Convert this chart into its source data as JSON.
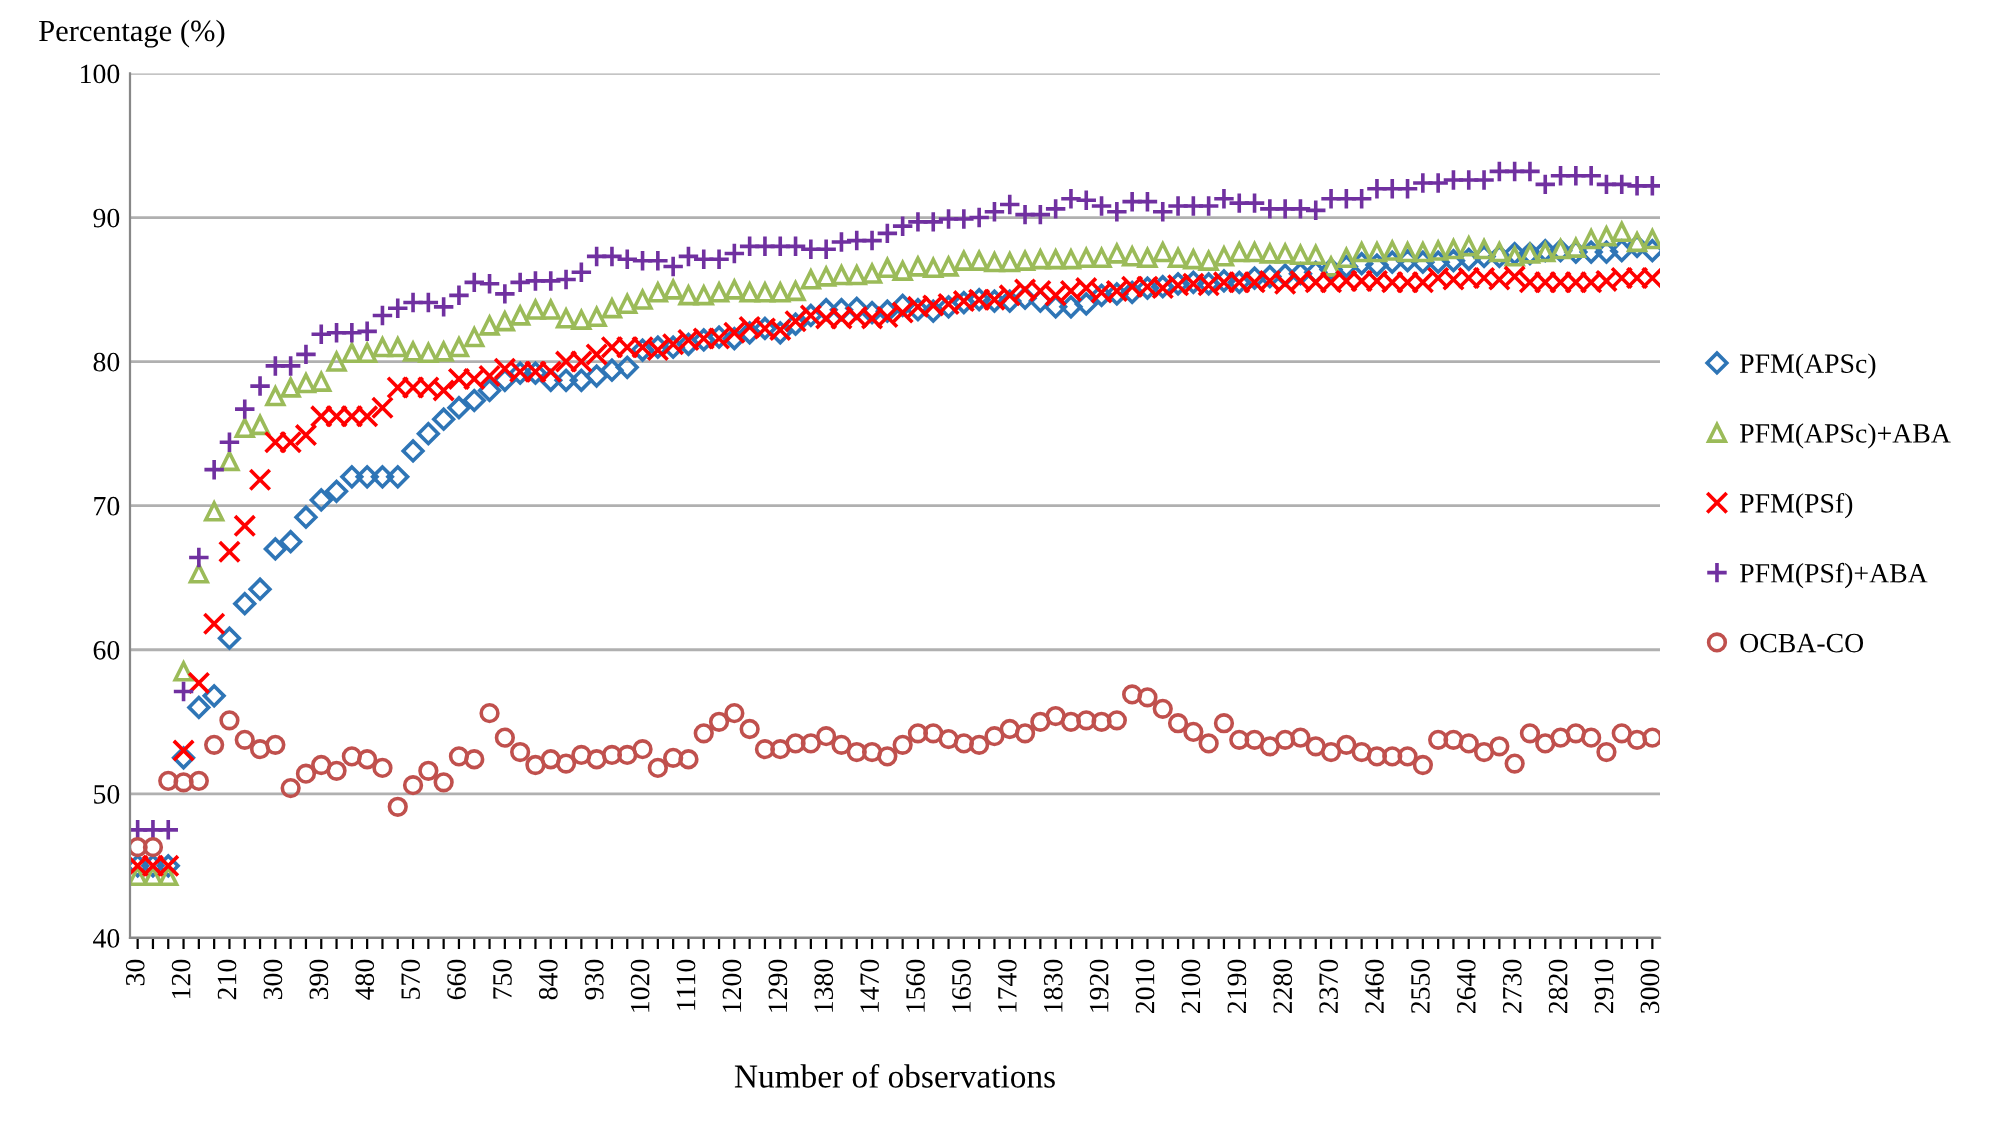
{
  "chart_data": {
    "type": "scatter",
    "ylabel": "Percentage (%)",
    "xlabel": "Number of observations",
    "categories": [
      "30",
      null,
      null,
      "120",
      null,
      null,
      "210",
      null,
      null,
      "300",
      null,
      null,
      "390",
      null,
      null,
      "480",
      null,
      null,
      "570",
      null,
      null,
      "660",
      null,
      null,
      "750",
      null,
      null,
      "840",
      null,
      null,
      "930",
      null,
      null,
      "1020",
      null,
      null,
      "1110",
      null,
      null,
      "1200",
      null,
      null,
      "1290",
      null,
      null,
      "1380",
      null,
      null,
      "1470",
      null,
      null,
      "1560",
      null,
      null,
      "1650",
      null,
      null,
      "1740",
      null,
      null,
      "1830",
      null,
      null,
      "1920",
      null,
      null,
      "2010",
      null,
      null,
      "2100",
      null,
      null,
      "2190",
      null,
      null,
      "2280",
      null,
      null,
      "2370",
      null,
      null,
      "2460",
      null,
      null,
      "2550",
      null,
      null,
      "2640",
      null,
      null,
      "2730",
      null,
      null,
      "2820",
      null,
      null,
      "2910",
      null,
      null,
      "3000"
    ],
    "ylim": [
      40,
      100
    ],
    "yticks": [
      40,
      50,
      60,
      70,
      80,
      90,
      100
    ],
    "grid": "y",
    "legend": "right",
    "series": [
      {
        "name": "PFM(APSc)",
        "color": "#2e75b6",
        "marker": "diamond",
        "values": [
          45,
          45,
          45,
          52.5,
          56,
          56.8,
          60.8,
          63.2,
          64.2,
          67,
          67.5,
          69.2,
          70.4,
          71,
          72,
          72,
          72,
          72,
          73.8,
          75,
          76,
          76.8,
          77.3,
          78,
          78.7,
          79.2,
          79.2,
          78.7,
          78.7,
          78.7,
          79,
          79.4,
          79.6,
          80.8,
          81,
          81,
          81.2,
          81.5,
          81.7,
          81.6,
          82,
          82.3,
          82,
          82.6,
          83.2,
          83.6,
          83.6,
          83.7,
          83.4,
          83.5,
          83.9,
          83.6,
          83.5,
          83.8,
          84.1,
          84.3,
          84.2,
          84.2,
          84.4,
          84.2,
          83.8,
          83.8,
          84,
          84.6,
          84.7,
          84.8,
          85.1,
          85.2,
          85.4,
          85.5,
          85.4,
          85.6,
          85.5,
          85.8,
          85.9,
          86,
          86.1,
          86.2,
          86.4,
          86.6,
          86.8,
          86.7,
          86.9,
          87,
          86.9,
          86.9,
          87,
          87.1,
          87.3,
          87.3,
          87.5,
          87.5,
          87.7,
          87.7,
          87.6,
          87.6,
          87.6,
          87.7,
          88,
          87.7
        ]
      },
      {
        "name": "PFM(APSc)+ABA",
        "color": "#9bbb59",
        "marker": "triangle",
        "values": [
          44.3,
          44.3,
          44.3,
          58.5,
          65.3,
          69.6,
          73.1,
          75.4,
          75.6,
          77.6,
          78.2,
          78.5,
          78.6,
          80,
          80.6,
          80.6,
          81,
          81,
          80.7,
          80.6,
          80.7,
          81,
          81.7,
          82.5,
          82.8,
          83.2,
          83.6,
          83.6,
          83,
          82.9,
          83.1,
          83.7,
          84,
          84.3,
          84.8,
          85,
          84.6,
          84.6,
          84.8,
          85,
          84.8,
          84.8,
          84.8,
          84.9,
          85.7,
          85.9,
          86,
          86,
          86.1,
          86.5,
          86.3,
          86.6,
          86.5,
          86.6,
          87,
          87,
          86.9,
          86.9,
          87,
          87.1,
          87.1,
          87.1,
          87.2,
          87.2,
          87.5,
          87.3,
          87.2,
          87.6,
          87.2,
          87.1,
          87,
          87.3,
          87.6,
          87.6,
          87.5,
          87.5,
          87.4,
          87.4,
          86.6,
          87.2,
          87.6,
          87.6,
          87.7,
          87.6,
          87.6,
          87.7,
          87.8,
          88,
          87.8,
          87.6,
          87.3,
          87.5,
          87.6,
          87.8,
          87.9,
          88.5,
          88.7,
          89,
          88.3,
          88.5
        ]
      },
      {
        "name": "PFM(PSf)",
        "color": "#ff0000",
        "marker": "cross",
        "values": [
          45,
          45,
          45,
          53,
          57.7,
          61.8,
          66.8,
          68.6,
          71.8,
          74.4,
          74.4,
          74.9,
          76.2,
          76.2,
          76.2,
          76.2,
          76.8,
          78.2,
          78.2,
          78.2,
          78,
          78.8,
          78.8,
          79,
          79.5,
          79.3,
          79.3,
          79.3,
          80,
          80,
          80.5,
          81,
          81,
          81,
          80.8,
          81.2,
          81.5,
          81.6,
          81.6,
          82,
          82.4,
          82.3,
          82.2,
          82.8,
          83.2,
          83,
          83,
          83.1,
          83,
          83.1,
          83.4,
          83.8,
          83.9,
          84,
          84.2,
          84.3,
          84.3,
          84.6,
          85,
          84.9,
          84.6,
          84.9,
          85.1,
          84.8,
          84.9,
          85.2,
          85.2,
          85.1,
          85.3,
          85.4,
          85.3,
          85.5,
          85.5,
          85.5,
          85.6,
          85.4,
          85.6,
          85.5,
          85.5,
          85.6,
          85.6,
          85.6,
          85.5,
          85.5,
          85.5,
          85.8,
          85.7,
          85.8,
          85.8,
          85.7,
          85.9,
          85.5,
          85.5,
          85.5,
          85.5,
          85.5,
          85.6,
          85.8,
          85.8,
          85.8
        ]
      },
      {
        "name": "PFM(PSf)+ABA",
        "color": "#7030a0",
        "marker": "plus",
        "values": [
          47.5,
          47.5,
          47.5,
          57.1,
          66.4,
          72.5,
          74.4,
          76.7,
          78.3,
          79.7,
          79.7,
          80.5,
          81.9,
          82,
          82,
          82.1,
          83.2,
          83.7,
          84.1,
          84.1,
          83.8,
          84.6,
          85.5,
          85.4,
          84.7,
          85.5,
          85.6,
          85.6,
          85.7,
          86.2,
          87.3,
          87.3,
          87.1,
          87,
          87,
          86.6,
          87.3,
          87.1,
          87.1,
          87.5,
          88,
          88,
          88,
          88,
          87.8,
          87.8,
          88.3,
          88.4,
          88.4,
          88.9,
          89.4,
          89.7,
          89.7,
          89.9,
          89.9,
          90,
          90.4,
          90.9,
          90.2,
          90.2,
          90.6,
          91.3,
          91.2,
          90.8,
          90.4,
          91.1,
          91.1,
          90.4,
          90.8,
          90.8,
          90.8,
          91.3,
          91,
          91,
          90.6,
          90.6,
          90.6,
          90.5,
          91.3,
          91.3,
          91.3,
          92,
          92,
          92,
          92.4,
          92.4,
          92.6,
          92.6,
          92.6,
          93.2,
          93.2,
          93.2,
          92.3,
          92.9,
          92.9,
          92.9,
          92.3,
          92.3,
          92.2,
          92.2
        ]
      },
      {
        "name": "OCBA-CO",
        "color": "#c0504d",
        "marker": "circle",
        "values": [
          46.3,
          46.3,
          50.9,
          50.8,
          50.9,
          53.4,
          55.1,
          53.75,
          53.1,
          53.4,
          50.4,
          51.4,
          52,
          51.6,
          52.6,
          52.4,
          51.8,
          49.1,
          50.6,
          51.6,
          50.8,
          52.6,
          52.4,
          55.6,
          53.9,
          52.9,
          52,
          52.4,
          52.1,
          52.7,
          52.4,
          52.7,
          52.7,
          53.1,
          51.8,
          52.5,
          52.4,
          54.2,
          55,
          55.6,
          54.5,
          53.1,
          53.1,
          53.5,
          53.5,
          54,
          53.4,
          52.9,
          52.9,
          52.6,
          53.4,
          54.2,
          54.2,
          53.8,
          53.5,
          53.4,
          54,
          54.5,
          54.2,
          55,
          55.4,
          55,
          55.1,
          55,
          55.1,
          56.9,
          56.7,
          55.9,
          54.9,
          54.3,
          53.5,
          54.9,
          53.75,
          53.75,
          53.3,
          53.75,
          53.9,
          53.3,
          52.9,
          53.4,
          52.9,
          52.6,
          52.6,
          52.6,
          52,
          53.75,
          53.75,
          53.5,
          52.9,
          53.3,
          52.1,
          54.2,
          53.5,
          53.9,
          54.2,
          53.9,
          52.9,
          54.2,
          53.75,
          53.9
        ]
      }
    ]
  }
}
